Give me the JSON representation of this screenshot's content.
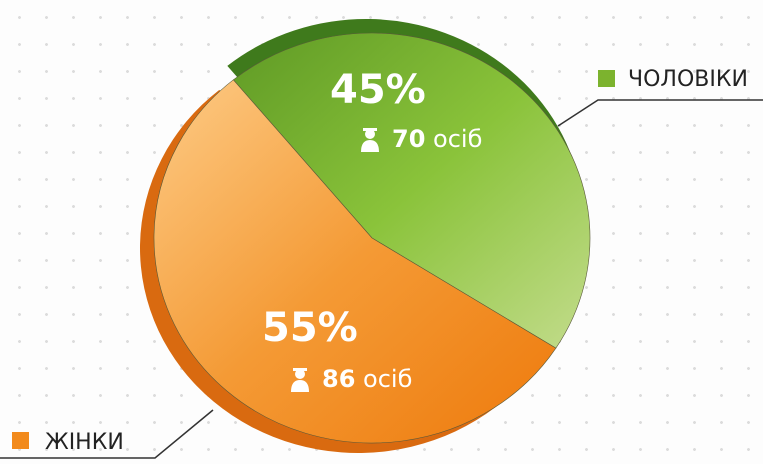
{
  "chart_data": {
    "type": "pie",
    "categories": [
      "ЧОЛОВІКИ",
      "ЖІНКИ"
    ],
    "values": [
      45,
      55
    ],
    "value_labels": [
      "45%",
      "55%"
    ],
    "counts": [
      70,
      86
    ],
    "count_unit": "осіб",
    "colors": [
      "#7cb32e",
      "#f28a1c"
    ]
  }
}
